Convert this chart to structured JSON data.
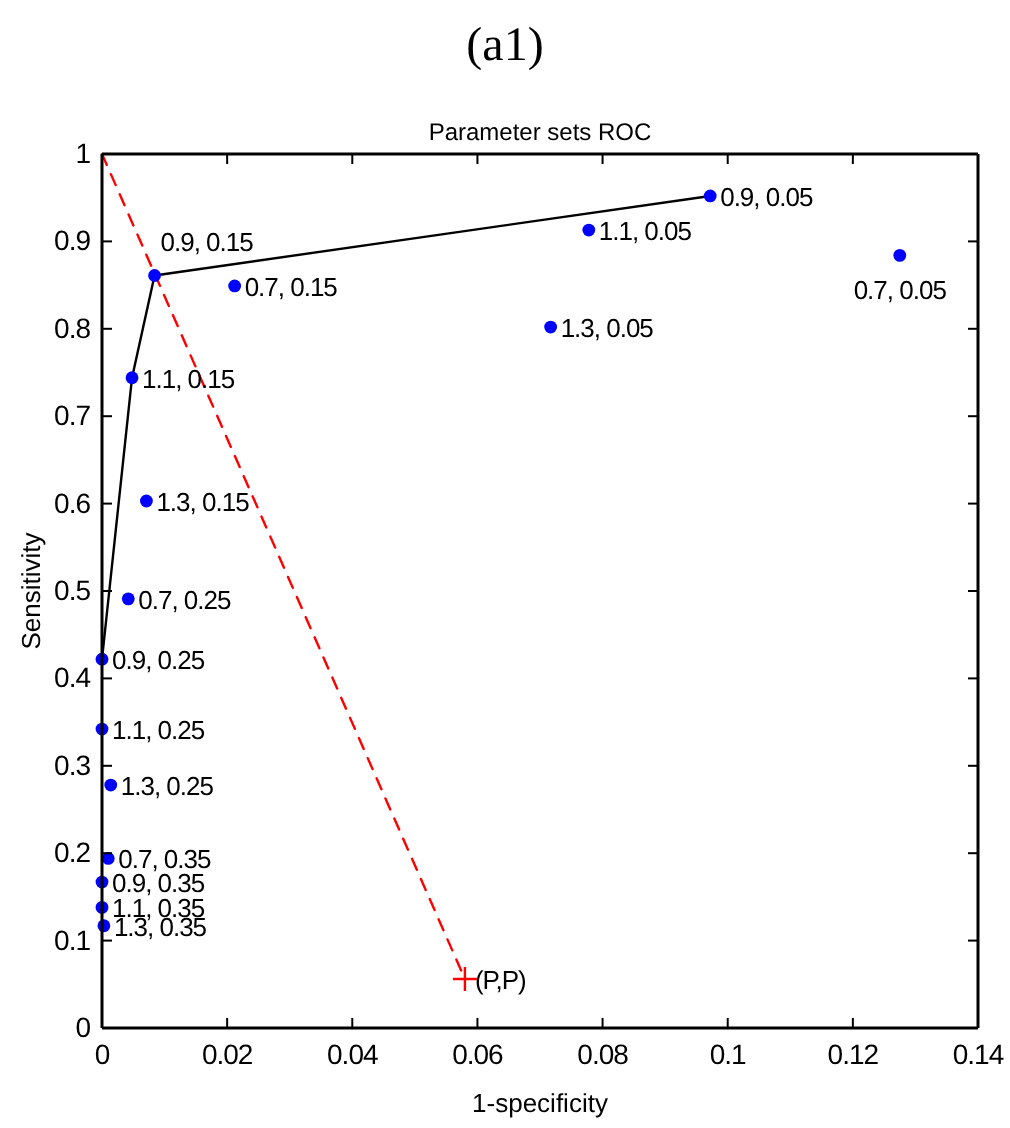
{
  "chart_data": {
    "type": "scatter",
    "title": "(a1)",
    "subtitle": "Parameter sets ROC",
    "xlabel": "1-specificity",
    "ylabel": "Sensitivity",
    "xlim": [
      0,
      0.14
    ],
    "xticks": [
      0,
      0.02,
      0.04,
      0.06,
      0.08,
      0.1,
      0.12,
      0.14
    ],
    "ylim": [
      0,
      1
    ],
    "yticks": [
      0,
      0.1,
      0.2,
      0.3,
      0.4,
      0.5,
      0.6,
      0.7,
      0.8,
      0.9,
      1
    ],
    "grid": false,
    "series": [
      {
        "type": "line",
        "color": "#000000",
        "marker": "none",
        "line_style": "solid",
        "x": [
          0,
          0.0048,
          0.0084,
          0.0972
        ],
        "values": [
          0.422,
          0.744,
          0.861,
          0.952
        ]
      },
      {
        "type": "line",
        "color": "#ff0000",
        "marker": "none",
        "line_style": "dashed",
        "x": [
          0,
          0.058
        ],
        "values": [
          1,
          0.056
        ]
      },
      {
        "color": "#0000ff",
        "marker": "circle",
        "x": [
          0.0972,
          0.0778,
          0.0717,
          0.1275,
          0.0084,
          0.0212,
          0.0048,
          0.0071,
          0.0042,
          0,
          0,
          0.0014,
          0.001,
          0,
          0,
          0.0003
        ],
        "values": [
          0.952,
          0.913,
          0.802,
          0.884,
          0.861,
          0.849,
          0.744,
          0.603,
          0.491,
          0.422,
          0.342,
          0.278,
          0.194,
          0.167,
          0.138,
          0.117
        ]
      },
      {
        "color": "#ff0000",
        "marker": "cross",
        "x": [
          0.058
        ],
        "values": [
          0.056
        ]
      }
    ],
    "annotations": [
      {
        "text": "0.9, 0.05",
        "x": 0.0972,
        "y": 0.952
      },
      {
        "text": "1.1, 0.05",
        "x": 0.0778,
        "y": 0.913
      },
      {
        "text": "1.3, 0.05",
        "x": 0.0717,
        "y": 0.802
      },
      {
        "text": "0.7, 0.05",
        "x": 0.1275,
        "y": 0.884
      },
      {
        "text": "0.9, 0.15",
        "x": 0.0084,
        "y": 0.861
      },
      {
        "text": "0.7, 0.15",
        "x": 0.0212,
        "y": 0.849
      },
      {
        "text": "1.1, 0.15",
        "x": 0.0048,
        "y": 0.744
      },
      {
        "text": "1.3, 0.15",
        "x": 0.0071,
        "y": 0.603
      },
      {
        "text": "0.7, 0.25",
        "x": 0.0042,
        "y": 0.491
      },
      {
        "text": "0.9, 0.25",
        "x": 0,
        "y": 0.422
      },
      {
        "text": "1.1, 0.25",
        "x": 0,
        "y": 0.342
      },
      {
        "text": "1.3, 0.25",
        "x": 0.0014,
        "y": 0.278
      },
      {
        "text": "0.7, 0.35",
        "x": 0.001,
        "y": 0.194
      },
      {
        "text": "0.9, 0.35",
        "x": 0,
        "y": 0.167
      },
      {
        "text": "1.1, 0.35",
        "x": 0,
        "y": 0.138
      },
      {
        "text": "1.3, 0.35",
        "x": 0.0003,
        "y": 0.117
      },
      {
        "text": "(P,P)",
        "x": 0.058,
        "y": 0.056
      }
    ]
  }
}
